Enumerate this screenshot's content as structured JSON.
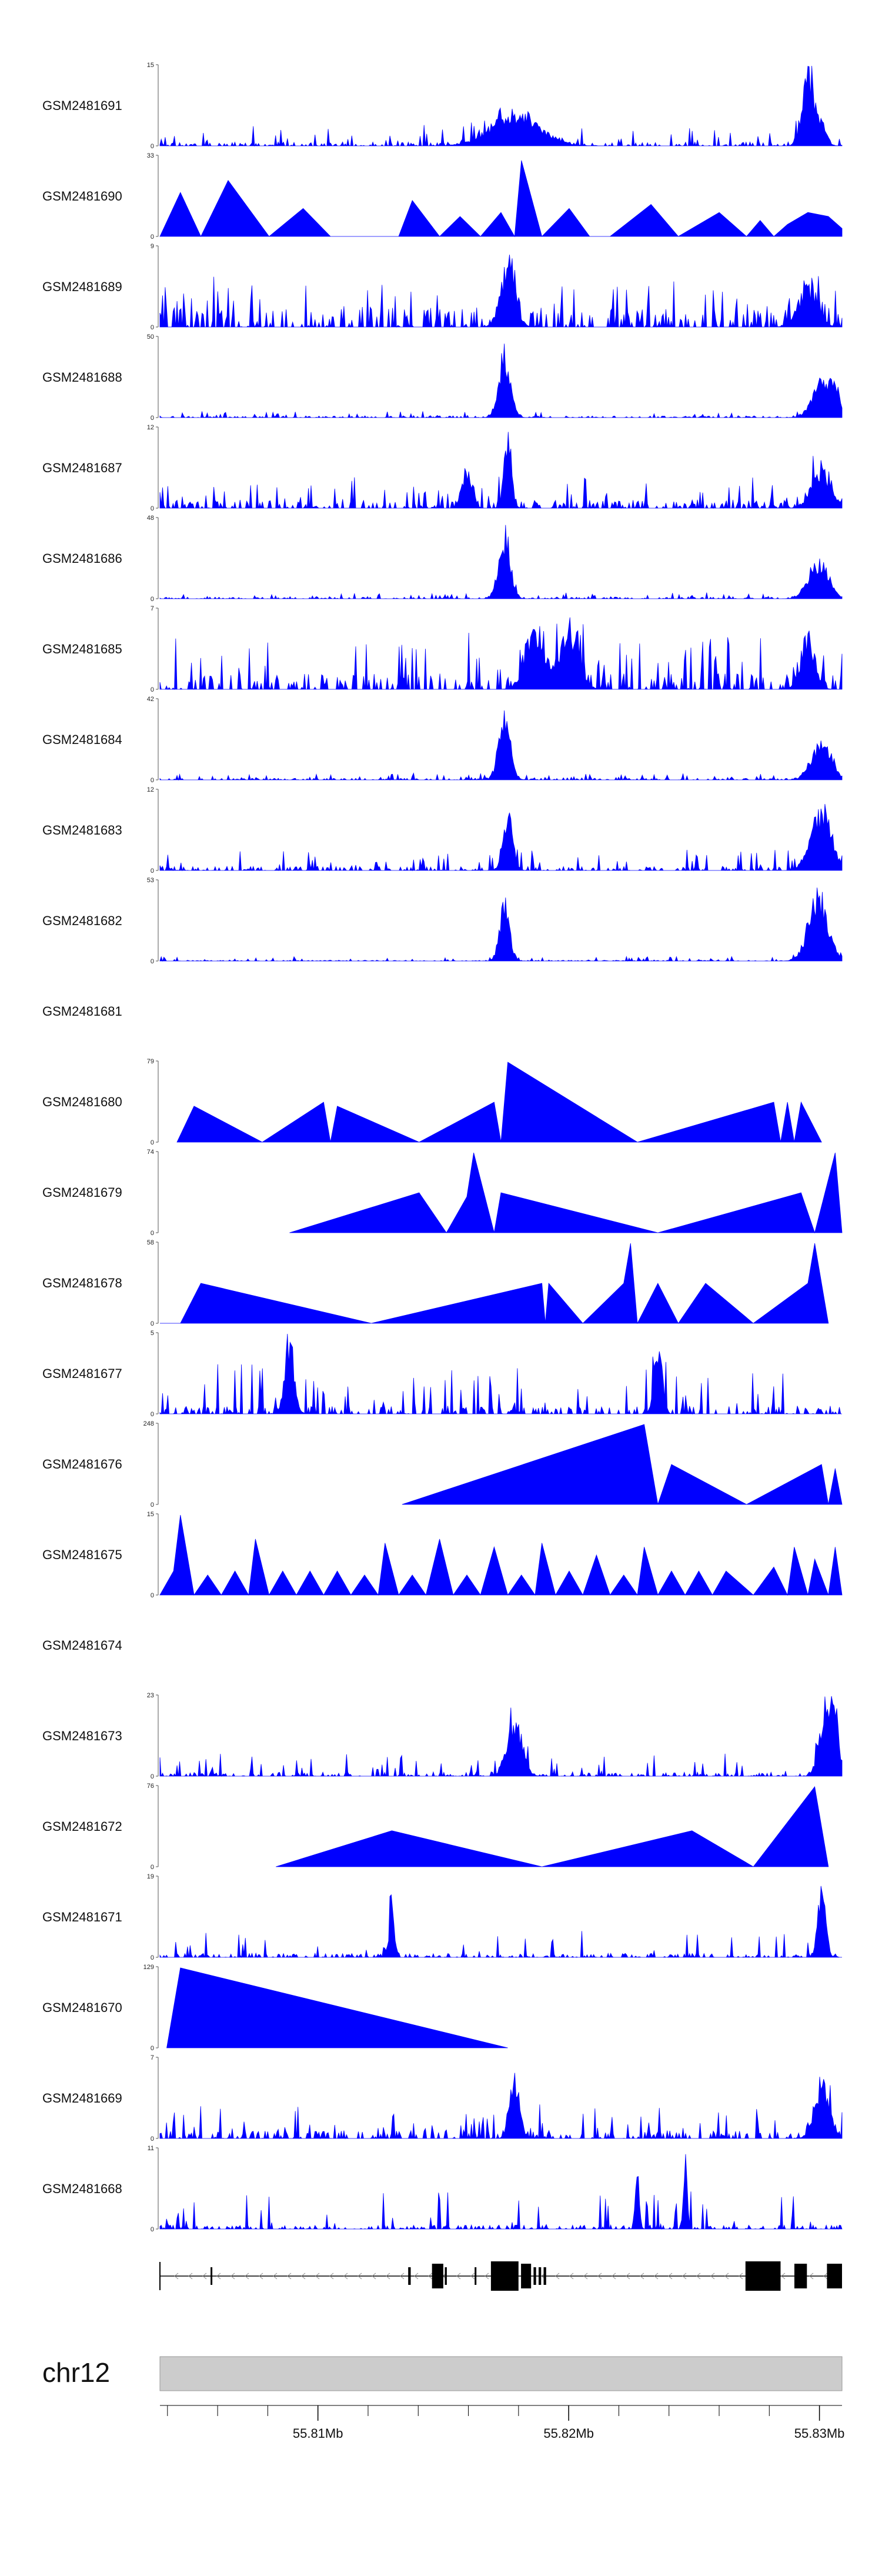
{
  "chart_data": {
    "type": "area",
    "chromosome": "chr12",
    "region": {
      "start": 55803700,
      "end": 55830900
    },
    "x_ticks": [
      {
        "pos": 55810000,
        "label": "55.81Mb"
      },
      {
        "pos": 55820000,
        "label": "55.82Mb"
      },
      {
        "pos": 55830000,
        "label": "55.83Mb"
      }
    ],
    "series_color": "#0000ff",
    "tracks": [
      {
        "name": "GSM2481691",
        "ymax": 15,
        "style": "spiky",
        "seed": 11,
        "base": 0.05,
        "noise": 0.22,
        "peaks": [
          [
            0.52,
            0.05,
            0.45
          ],
          [
            0.95,
            0.012,
            1.0
          ],
          [
            0.97,
            0.01,
            0.35
          ]
        ]
      },
      {
        "name": "GSM2481690",
        "ymax": 33,
        "style": "tri",
        "seed": 23,
        "anchors": [
          [
            0.0,
            0
          ],
          [
            0.03,
            0.55
          ],
          [
            0.06,
            0
          ],
          [
            0.1,
            0.7
          ],
          [
            0.16,
            0
          ],
          [
            0.21,
            0.35
          ],
          [
            0.25,
            0
          ],
          [
            0.35,
            0
          ],
          [
            0.37,
            0.45
          ],
          [
            0.41,
            0
          ],
          [
            0.44,
            0.25
          ],
          [
            0.47,
            0
          ],
          [
            0.5,
            0.3
          ],
          [
            0.52,
            0
          ],
          [
            0.53,
            0.95
          ],
          [
            0.56,
            0
          ],
          [
            0.6,
            0.35
          ],
          [
            0.63,
            0
          ],
          [
            0.66,
            0
          ],
          [
            0.72,
            0.4
          ],
          [
            0.76,
            0
          ],
          [
            0.82,
            0.3
          ],
          [
            0.86,
            0
          ],
          [
            0.88,
            0.2
          ],
          [
            0.9,
            0
          ],
          [
            0.92,
            0.15
          ],
          [
            0.95,
            0.3
          ],
          [
            0.98,
            0.25
          ],
          [
            1.0,
            0.1
          ]
        ]
      },
      {
        "name": "GSM2481689",
        "ymax": 9,
        "style": "spiky",
        "seed": 37,
        "base": 0.25,
        "noise": 0.45,
        "peaks": [
          [
            0.51,
            0.015,
            0.95
          ],
          [
            0.95,
            0.02,
            0.55
          ]
        ]
      },
      {
        "name": "GSM2481688",
        "ymax": 50,
        "style": "spiky",
        "seed": 41,
        "base": 0.02,
        "noise": 0.06,
        "peaks": [
          [
            0.505,
            0.012,
            0.95
          ],
          [
            0.97,
            0.02,
            0.5
          ],
          [
            0.99,
            0.01,
            0.35
          ]
        ]
      },
      {
        "name": "GSM2481687",
        "ymax": 12,
        "style": "spiky",
        "seed": 53,
        "base": 0.1,
        "noise": 0.3,
        "peaks": [
          [
            0.51,
            0.008,
            0.95
          ],
          [
            0.45,
            0.01,
            0.5
          ],
          [
            0.97,
            0.02,
            0.55
          ]
        ]
      },
      {
        "name": "GSM2481686",
        "ymax": 48,
        "style": "spiky",
        "seed": 67,
        "base": 0.02,
        "noise": 0.06,
        "peaks": [
          [
            0.505,
            0.012,
            0.95
          ],
          [
            0.965,
            0.02,
            0.55
          ]
        ]
      },
      {
        "name": "GSM2481685",
        "ymax": 7,
        "style": "spiky",
        "seed": 79,
        "base": 0.2,
        "noise": 0.6,
        "peaks": [
          [
            0.55,
            0.02,
            0.85
          ],
          [
            0.6,
            0.02,
            0.8
          ],
          [
            0.95,
            0.015,
            0.75
          ]
        ]
      },
      {
        "name": "GSM2481684",
        "ymax": 42,
        "style": "spiky",
        "seed": 83,
        "base": 0.02,
        "noise": 0.07,
        "peaks": [
          [
            0.505,
            0.012,
            0.9
          ],
          [
            0.97,
            0.02,
            0.55
          ]
        ]
      },
      {
        "name": "GSM2481683",
        "ymax": 12,
        "style": "spiky",
        "seed": 97,
        "base": 0.05,
        "noise": 0.22,
        "peaks": [
          [
            0.51,
            0.01,
            0.85
          ],
          [
            0.97,
            0.02,
            0.9
          ]
        ]
      },
      {
        "name": "GSM2481682",
        "ymax": 53,
        "style": "spiky",
        "seed": 101,
        "base": 0.01,
        "noise": 0.05,
        "peaks": [
          [
            0.505,
            0.01,
            0.85
          ],
          [
            0.965,
            0.02,
            0.95
          ]
        ]
      },
      {
        "name": "GSM2481681",
        "ymax": null,
        "style": "empty"
      },
      {
        "name": "GSM2481680",
        "ymax": 79,
        "style": "tri",
        "seed": 0,
        "anchors": [
          [
            0.025,
            0
          ],
          [
            0.05,
            0.45
          ],
          [
            0.15,
            0
          ],
          [
            0.24,
            0.5
          ],
          [
            0.25,
            0
          ],
          [
            0.26,
            0.45
          ],
          [
            0.38,
            0
          ],
          [
            0.49,
            0.5
          ],
          [
            0.5,
            0
          ],
          [
            0.51,
            1.0
          ],
          [
            0.7,
            0
          ],
          [
            0.9,
            0.5
          ],
          [
            0.91,
            0
          ],
          [
            0.92,
            0.5
          ],
          [
            0.93,
            0
          ],
          [
            0.94,
            0.5
          ],
          [
            0.97,
            0
          ]
        ]
      },
      {
        "name": "GSM2481679",
        "ymax": 74,
        "style": "tri",
        "seed": 0,
        "anchors": [
          [
            0.19,
            0
          ],
          [
            0.38,
            0.5
          ],
          [
            0.42,
            0
          ],
          [
            0.45,
            0.45
          ],
          [
            0.46,
            1.0
          ],
          [
            0.49,
            0
          ],
          [
            0.5,
            0.5
          ],
          [
            0.73,
            0
          ],
          [
            0.94,
            0.5
          ],
          [
            0.96,
            0
          ],
          [
            0.99,
            1.0
          ],
          [
            1.0,
            0
          ]
        ]
      },
      {
        "name": "GSM2481678",
        "ymax": 58,
        "style": "tri",
        "seed": 0,
        "anchors": [
          [
            0.0,
            0
          ],
          [
            0.03,
            0
          ],
          [
            0.06,
            0.5
          ],
          [
            0.31,
            0
          ],
          [
            0.56,
            0.5
          ],
          [
            0.565,
            0
          ],
          [
            0.57,
            0.5
          ],
          [
            0.62,
            0
          ],
          [
            0.68,
            0.5
          ],
          [
            0.69,
            1.0
          ],
          [
            0.7,
            0
          ],
          [
            0.73,
            0.5
          ],
          [
            0.76,
            0
          ],
          [
            0.8,
            0.5
          ],
          [
            0.87,
            0
          ],
          [
            0.95,
            0.5
          ],
          [
            0.96,
            1.0
          ],
          [
            0.98,
            0
          ]
        ]
      },
      {
        "name": "GSM2481677",
        "ymax": 5,
        "style": "spiky",
        "seed": 131,
        "base": 0.1,
        "noise": 0.55,
        "peaks": [
          [
            0.19,
            0.01,
            1.0
          ],
          [
            0.73,
            0.008,
            1.0
          ]
        ]
      },
      {
        "name": "GSM2481676",
        "ymax": 248,
        "style": "tri",
        "seed": 0,
        "anchors": [
          [
            0.355,
            0
          ],
          [
            0.71,
            1.0
          ],
          [
            0.73,
            0
          ],
          [
            0.75,
            0.5
          ],
          [
            0.86,
            0
          ],
          [
            0.97,
            0.5
          ],
          [
            0.98,
            0
          ],
          [
            0.99,
            0.45
          ],
          [
            1.0,
            0
          ]
        ]
      },
      {
        "name": "GSM2481675",
        "ymax": 15,
        "style": "tri",
        "seed": 0,
        "anchors": [
          [
            0.0,
            0
          ],
          [
            0.02,
            0.3
          ],
          [
            0.03,
            1.0
          ],
          [
            0.05,
            0
          ],
          [
            0.07,
            0.25
          ],
          [
            0.09,
            0
          ],
          [
            0.11,
            0.3
          ],
          [
            0.13,
            0
          ],
          [
            0.14,
            0.7
          ],
          [
            0.16,
            0
          ],
          [
            0.18,
            0.3
          ],
          [
            0.2,
            0
          ],
          [
            0.22,
            0.3
          ],
          [
            0.24,
            0
          ],
          [
            0.26,
            0.3
          ],
          [
            0.28,
            0
          ],
          [
            0.3,
            0.25
          ],
          [
            0.32,
            0
          ],
          [
            0.33,
            0.65
          ],
          [
            0.35,
            0
          ],
          [
            0.37,
            0.25
          ],
          [
            0.39,
            0
          ],
          [
            0.41,
            0.7
          ],
          [
            0.43,
            0
          ],
          [
            0.45,
            0.25
          ],
          [
            0.47,
            0
          ],
          [
            0.49,
            0.6
          ],
          [
            0.51,
            0
          ],
          [
            0.53,
            0.25
          ],
          [
            0.55,
            0
          ],
          [
            0.56,
            0.65
          ],
          [
            0.58,
            0
          ],
          [
            0.6,
            0.3
          ],
          [
            0.62,
            0
          ],
          [
            0.64,
            0.5
          ],
          [
            0.66,
            0
          ],
          [
            0.68,
            0.25
          ],
          [
            0.7,
            0
          ],
          [
            0.71,
            0.6
          ],
          [
            0.73,
            0
          ],
          [
            0.75,
            0.3
          ],
          [
            0.77,
            0
          ],
          [
            0.79,
            0.3
          ],
          [
            0.81,
            0
          ],
          [
            0.83,
            0.3
          ],
          [
            0.87,
            0
          ],
          [
            0.9,
            0.35
          ],
          [
            0.92,
            0
          ],
          [
            0.93,
            0.6
          ],
          [
            0.95,
            0
          ],
          [
            0.96,
            0.45
          ],
          [
            0.98,
            0
          ],
          [
            0.99,
            0.6
          ],
          [
            1.0,
            0
          ]
        ]
      },
      {
        "name": "GSM2481674",
        "ymax": null,
        "style": "empty"
      },
      {
        "name": "GSM2481673",
        "ymax": 23,
        "style": "spiky",
        "seed": 167,
        "base": 0.05,
        "noise": 0.25,
        "peaks": [
          [
            0.52,
            0.015,
            0.85
          ],
          [
            0.975,
            0.012,
            1.0
          ],
          [
            0.99,
            0.008,
            0.9
          ]
        ]
      },
      {
        "name": "GSM2481672",
        "ymax": 76,
        "style": "tri",
        "seed": 0,
        "anchors": [
          [
            0.17,
            0
          ],
          [
            0.34,
            0.45
          ],
          [
            0.56,
            0
          ],
          [
            0.78,
            0.45
          ],
          [
            0.87,
            0
          ],
          [
            0.96,
            1.0
          ],
          [
            0.98,
            0
          ]
        ]
      },
      {
        "name": "GSM2481671",
        "ymax": 19,
        "style": "spiky",
        "seed": 179,
        "base": 0.05,
        "noise": 0.3,
        "peaks": [
          [
            0.34,
            0.005,
            0.85
          ],
          [
            0.97,
            0.008,
            1.0
          ]
        ]
      },
      {
        "name": "GSM2481670",
        "ymax": 129,
        "style": "tri",
        "seed": 0,
        "anchors": [
          [
            0.01,
            0
          ],
          [
            0.03,
            1.0
          ],
          [
            0.51,
            0
          ]
        ]
      },
      {
        "name": "GSM2481669",
        "ymax": 7,
        "style": "spiky",
        "seed": 191,
        "base": 0.1,
        "noise": 0.35,
        "peaks": [
          [
            0.52,
            0.01,
            0.9
          ],
          [
            0.97,
            0.015,
            0.85
          ]
        ]
      },
      {
        "name": "GSM2481668",
        "ymax": 11,
        "style": "spiky",
        "seed": 199,
        "base": 0.05,
        "noise": 0.45,
        "peaks": [
          [
            0.7,
            0.004,
            1.0
          ],
          [
            0.77,
            0.004,
            1.0
          ]
        ]
      }
    ],
    "gene_exons": [
      [
        55805720,
        55805760
      ],
      [
        55813600,
        55813700
      ],
      [
        55814550,
        55815000
      ],
      [
        55815060,
        55815140
      ],
      [
        55816250,
        55816300
      ],
      [
        55816900,
        55818000
      ],
      [
        55818100,
        55818500
      ],
      [
        55818600,
        55818700
      ],
      [
        55818800,
        55818900
      ],
      [
        55819000,
        55819100
      ],
      [
        55827050,
        55828450
      ],
      [
        55829000,
        55829500
      ],
      [
        55830300,
        55830900
      ]
    ],
    "gene_line": [
      55803700,
      55830900
    ]
  }
}
